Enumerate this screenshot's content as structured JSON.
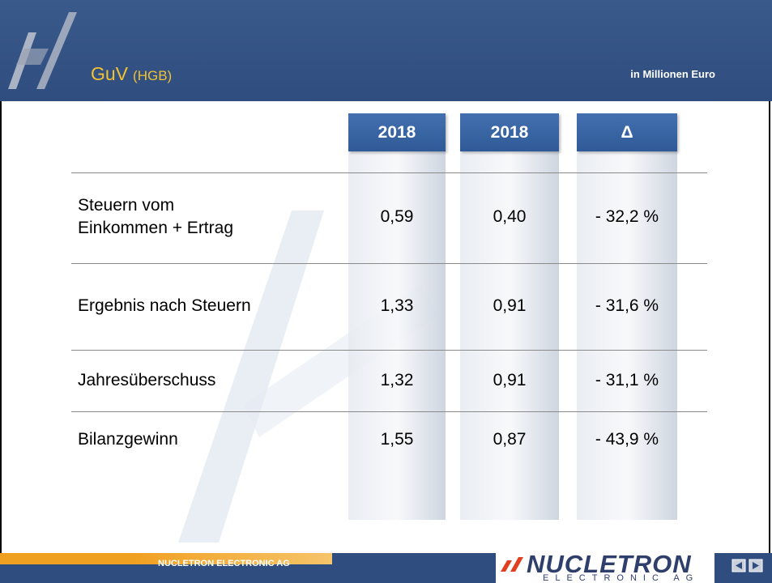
{
  "header": {
    "title": "GuV",
    "subtitle": "(HGB)",
    "unit": "in Millionen Euro"
  },
  "table": {
    "columns": [
      "2018",
      "2018",
      "Δ"
    ],
    "rows": [
      [
        "Steuern vom\nEinkommen + Ertrag",
        "0,59",
        "0,40",
        "- 32,2 %"
      ],
      [
        "Ergebnis nach Steuern",
        "1,33",
        "0,91",
        "- 31,6 %"
      ],
      [
        "Jahresüberschuss",
        "1,32",
        "0,91",
        "- 31,1 %"
      ],
      [
        "Bilanzgewinn",
        "1,55",
        "0,87",
        "- 43,9 %"
      ]
    ]
  },
  "footer": {
    "company": "NUCLETRON ELECTRONIC AG",
    "logo": "NUCLETRON",
    "logo_sub": "ELECTRONIC AG"
  }
}
